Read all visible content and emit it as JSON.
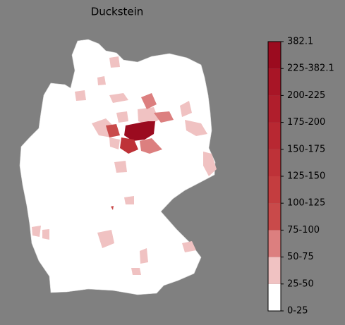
{
  "map": {
    "title": "Duckstein",
    "legend": {
      "labels": [
        "0-25",
        "25-50",
        "50-75",
        "75-100",
        "100-125",
        "125-150",
        "150-175",
        "175-200",
        "200-225",
        "225-382.1",
        "382.1"
      ],
      "colors": [
        "#ffffff",
        "#f0c2c2",
        "#dc7f7f",
        "#c94a4a",
        "#c43d3f",
        "#be3238",
        "#b82832",
        "#b01e2c",
        "#a81526",
        "#9b0b1f"
      ]
    }
  }
}
